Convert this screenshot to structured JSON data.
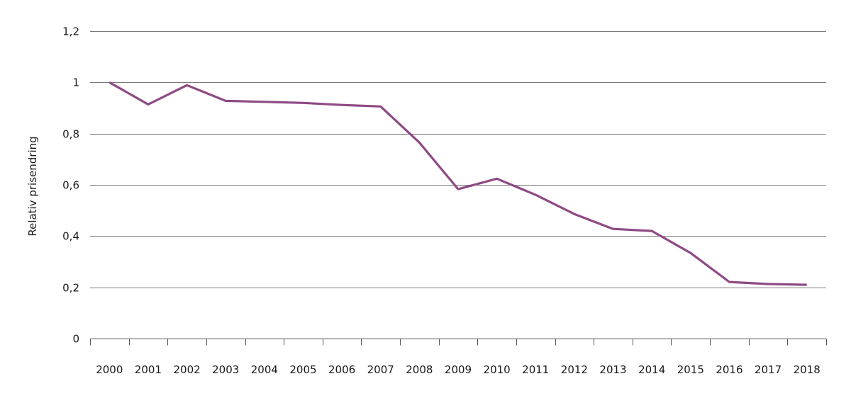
{
  "chart_data": {
    "type": "line",
    "title": "",
    "xlabel": "",
    "ylabel": "Relativ prisendring",
    "ylim": [
      0,
      1.2
    ],
    "yticks": [
      0,
      0.2,
      0.4,
      0.6,
      0.8,
      1,
      1.2
    ],
    "ytick_labels": [
      "0",
      "0,2",
      "0,4",
      "0,6",
      "0,8",
      "1",
      "1,2"
    ],
    "grid": "horizontal",
    "legend": "none",
    "categories": [
      "2000",
      "2001",
      "2002",
      "2003",
      "2004",
      "2005",
      "2006",
      "2007",
      "2008",
      "2009",
      "2010",
      "2011",
      "2012",
      "2013",
      "2014",
      "2015",
      "2016",
      "2017",
      "2018"
    ],
    "series": [
      {
        "name": "Relativ prisendring",
        "color": "#8E4A84",
        "values": [
          1.0,
          0.914,
          0.989,
          0.928,
          0.924,
          0.92,
          0.912,
          0.906,
          0.765,
          0.583,
          0.624,
          0.561,
          0.486,
          0.428,
          0.42,
          0.334,
          0.221,
          0.213,
          0.21
        ]
      }
    ]
  },
  "colors": {
    "gridline": "#7a7a7a",
    "axis": "#555555",
    "text": "#1a1a1a"
  }
}
